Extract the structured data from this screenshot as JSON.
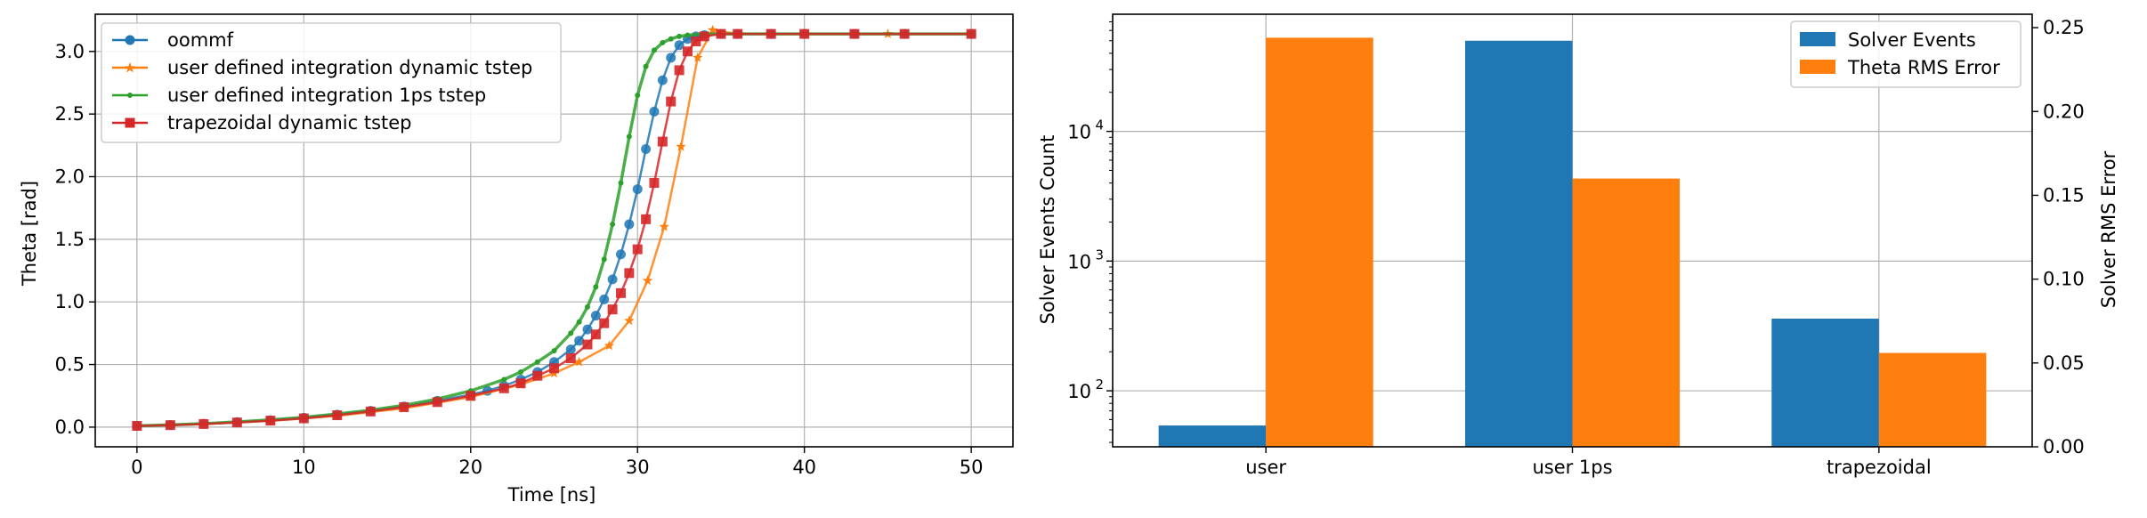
{
  "chart_data": [
    {
      "type": "line",
      "xlabel": "Time [ns]",
      "ylabel": "Theta [rad]",
      "xlim": [
        -2.5,
        52.5
      ],
      "ylim": [
        -0.157,
        3.297
      ],
      "xticks": [
        0,
        10,
        20,
        30,
        40,
        50
      ],
      "yticks": [
        0.0,
        0.5,
        1.0,
        1.5,
        2.0,
        2.5,
        3.0
      ],
      "grid": true,
      "legend_position": "upper-left",
      "series": [
        {
          "name": "oommf",
          "color": "#1f77b4",
          "marker": "circle",
          "x": [
            0,
            2,
            4,
            6,
            8,
            10,
            12,
            14,
            16,
            18,
            20,
            21,
            22,
            23,
            24,
            25,
            26,
            26.5,
            27,
            27.5,
            28,
            28.5,
            29,
            29.5,
            30,
            30.5,
            31,
            31.5,
            32,
            32.5,
            33,
            33.5,
            34,
            35,
            36,
            38,
            40,
            43,
            46,
            50
          ],
          "y": [
            0.01,
            0.017,
            0.027,
            0.04,
            0.055,
            0.075,
            0.1,
            0.13,
            0.165,
            0.21,
            0.26,
            0.29,
            0.33,
            0.38,
            0.44,
            0.52,
            0.62,
            0.69,
            0.78,
            0.89,
            1.02,
            1.18,
            1.38,
            1.62,
            1.9,
            2.22,
            2.52,
            2.77,
            2.95,
            3.05,
            3.1,
            3.12,
            3.13,
            3.14,
            3.14,
            3.14,
            3.14,
            3.14,
            3.14,
            3.14
          ]
        },
        {
          "name": "user defined integration dynamic tstep",
          "color": "#ff7f0e",
          "marker": "star",
          "x": [
            0,
            4,
            8,
            12,
            16,
            20,
            23,
            25,
            26.5,
            28.3,
            29.5,
            30.6,
            31.6,
            32.6,
            33.6,
            34.5,
            36,
            40,
            45,
            50
          ],
          "y": [
            0.01,
            0.025,
            0.05,
            0.09,
            0.15,
            0.24,
            0.34,
            0.43,
            0.52,
            0.65,
            0.85,
            1.17,
            1.6,
            2.24,
            2.95,
            3.17,
            3.14,
            3.14,
            3.14,
            3.14
          ]
        },
        {
          "name": "user defined integration 1ps tstep",
          "color": "#2ca02c",
          "marker": "dot",
          "x": [
            0,
            2,
            4,
            6,
            8,
            10,
            12,
            14,
            16,
            18,
            20,
            22,
            23,
            24,
            25,
            26,
            26.5,
            27,
            27.5,
            28,
            28.5,
            29,
            29.5,
            30,
            30.5,
            31,
            31.5,
            32,
            32.5,
            33,
            34,
            35,
            36,
            38,
            40,
            43,
            46,
            50
          ],
          "y": [
            0.01,
            0.018,
            0.028,
            0.042,
            0.058,
            0.078,
            0.105,
            0.135,
            0.175,
            0.225,
            0.29,
            0.38,
            0.44,
            0.52,
            0.61,
            0.75,
            0.84,
            0.96,
            1.12,
            1.34,
            1.62,
            1.95,
            2.32,
            2.65,
            2.88,
            3.01,
            3.07,
            3.1,
            3.12,
            3.13,
            3.14,
            3.14,
            3.14,
            3.14,
            3.14,
            3.14,
            3.14,
            3.14
          ]
        },
        {
          "name": "trapezoidal dynamic tstep",
          "color": "#d62728",
          "marker": "square",
          "x": [
            0,
            2,
            4,
            6,
            8,
            10,
            12,
            14,
            16,
            18,
            20,
            22,
            23,
            24,
            25,
            26,
            27,
            27.5,
            28,
            28.5,
            29,
            29.5,
            30,
            30.5,
            31,
            31.5,
            32,
            32.5,
            33,
            33.5,
            34,
            35,
            36,
            38,
            40,
            43,
            46,
            50
          ],
          "y": [
            0.01,
            0.016,
            0.025,
            0.037,
            0.052,
            0.07,
            0.095,
            0.125,
            0.16,
            0.2,
            0.25,
            0.31,
            0.35,
            0.41,
            0.47,
            0.55,
            0.66,
            0.74,
            0.83,
            0.94,
            1.07,
            1.23,
            1.42,
            1.66,
            1.95,
            2.28,
            2.6,
            2.85,
            3.0,
            3.08,
            3.12,
            3.14,
            3.14,
            3.14,
            3.14,
            3.14,
            3.14,
            3.14
          ]
        }
      ]
    },
    {
      "type": "bar",
      "categories": [
        "user",
        "user 1ps",
        "trapezoidal"
      ],
      "ylabel": "Solver Events Count",
      "ylabel_right": "Solver RMS Error",
      "yscale": "log",
      "ylim": [
        37,
        80000
      ],
      "yticks": [
        100,
        1000,
        10000
      ],
      "ytick_labels": [
        "10^2",
        "10^3",
        "10^4"
      ],
      "ylim_right": [
        0.0,
        0.258
      ],
      "yticks_right": [
        0.0,
        0.05,
        0.1,
        0.15,
        0.2,
        0.25
      ],
      "ytick_labels_right": [
        "0.00",
        "0.05",
        "0.10",
        "0.15",
        "0.20",
        "0.25"
      ],
      "grid": true,
      "legend_position": "upper-right",
      "series": [
        {
          "name": "Solver Events",
          "axis": "left",
          "color": "#1f77b4",
          "values": [
            54,
            50000,
            360
          ]
        },
        {
          "name": "Theta RMS Error",
          "axis": "right",
          "color": "#ff7f0e",
          "values": [
            0.244,
            0.16,
            0.056
          ]
        }
      ]
    }
  ]
}
